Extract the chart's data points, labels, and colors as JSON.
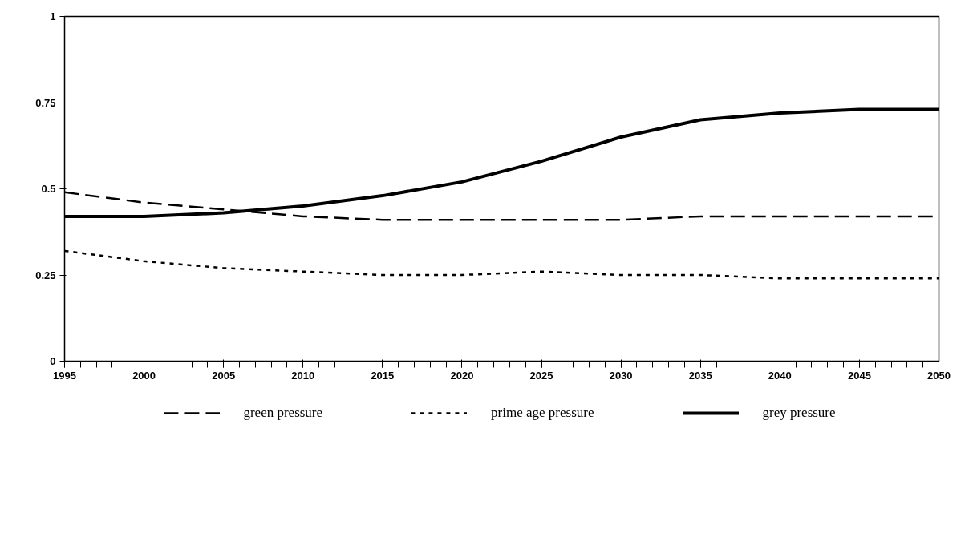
{
  "chart_data": {
    "type": "line",
    "x": [
      1995,
      2000,
      2005,
      2010,
      2015,
      2020,
      2025,
      2030,
      2035,
      2040,
      2045,
      2050
    ],
    "series": [
      {
        "name": "green pressure",
        "color": "#000000",
        "line_style": "dashed",
        "values": [
          0.49,
          0.46,
          0.44,
          0.42,
          0.41,
          0.41,
          0.41,
          0.41,
          0.42,
          0.42,
          0.42,
          0.42
        ]
      },
      {
        "name": "prime age pressure",
        "color": "#000000",
        "line_style": "dotted",
        "values": [
          0.32,
          0.29,
          0.27,
          0.26,
          0.25,
          0.25,
          0.26,
          0.25,
          0.25,
          0.24,
          0.24,
          0.24
        ]
      },
      {
        "name": "grey pressure",
        "color": "#000000",
        "line_style": "solid",
        "values": [
          0.42,
          0.42,
          0.43,
          0.45,
          0.48,
          0.52,
          0.58,
          0.65,
          0.7,
          0.72,
          0.73,
          0.73
        ]
      }
    ],
    "xlim": [
      1995,
      2050
    ],
    "ylim": [
      0,
      1
    ],
    "xticks": [
      1995,
      2000,
      2005,
      2010,
      2015,
      2020,
      2025,
      2030,
      2035,
      2040,
      2045,
      2050
    ],
    "yticks": [
      0,
      {
        "value": 0.25,
        "label": "0.25"
      },
      {
        "value": 0.5,
        "label": "0.5"
      },
      {
        "value": 0.75,
        "label": "0.75"
      },
      1
    ],
    "grid": false,
    "legend": "bottom",
    "marker": "none"
  }
}
